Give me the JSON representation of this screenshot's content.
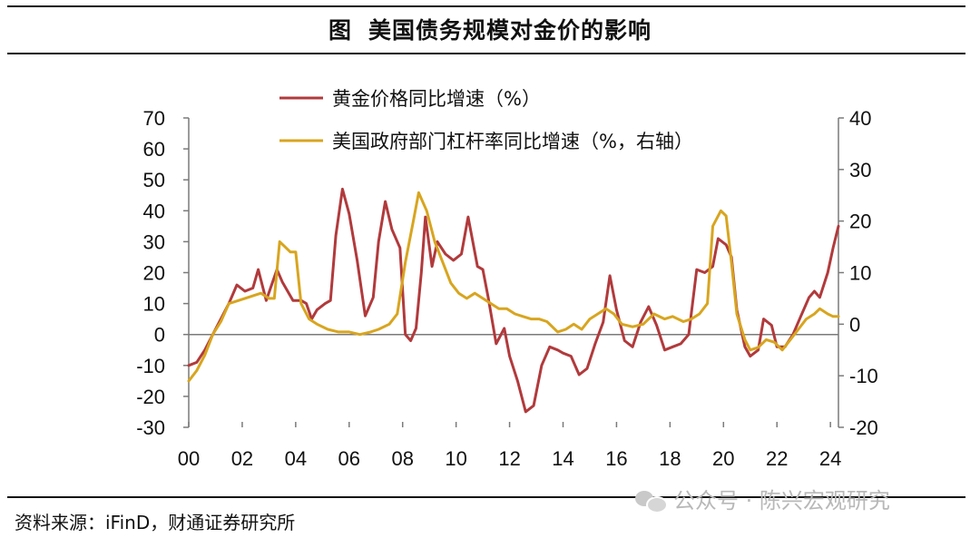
{
  "header": {
    "fig_mark": "图",
    "title": "美国债务规模对金价的影响"
  },
  "source": "资料来源：iFinD，财通证券研究所",
  "watermark": "公众号 · 陈兴宏观研究",
  "chart_data": {
    "type": "line",
    "x_tick_labels": [
      "00",
      "02",
      "04",
      "06",
      "08",
      "10",
      "12",
      "14",
      "16",
      "18",
      "20",
      "22",
      "24"
    ],
    "xlim": [
      2000.0,
      2024.3
    ],
    "y_left": {
      "ticks": [
        "70",
        "60",
        "50",
        "40",
        "30",
        "20",
        "10",
        "0",
        "-10",
        "-20",
        "-30"
      ],
      "lim": [
        -30,
        70
      ]
    },
    "y_right": {
      "ticks": [
        "40",
        "30",
        "20",
        "10",
        "0",
        "-10",
        "-20"
      ],
      "lim": [
        -20,
        40
      ]
    },
    "legend_position": "top-center",
    "series": [
      {
        "name": "黄金价格同比增速（%）",
        "axis": "left",
        "color": "#b13a3c",
        "points": [
          [
            2000.0,
            -10
          ],
          [
            2000.3,
            -9
          ],
          [
            2000.6,
            -5
          ],
          [
            2000.9,
            0
          ],
          [
            2001.2,
            5
          ],
          [
            2001.5,
            10
          ],
          [
            2001.8,
            16
          ],
          [
            2002.1,
            14
          ],
          [
            2002.4,
            15
          ],
          [
            2002.6,
            21
          ],
          [
            2002.9,
            11
          ],
          [
            2003.1,
            16
          ],
          [
            2003.3,
            21
          ],
          [
            2003.5,
            17
          ],
          [
            2003.7,
            14
          ],
          [
            2003.9,
            11
          ],
          [
            2004.2,
            11
          ],
          [
            2004.4,
            10
          ],
          [
            2004.6,
            5
          ],
          [
            2004.8,
            8
          ],
          [
            2005.1,
            10
          ],
          [
            2005.3,
            11
          ],
          [
            2005.5,
            32
          ],
          [
            2005.75,
            47
          ],
          [
            2006.0,
            39
          ],
          [
            2006.3,
            24
          ],
          [
            2006.6,
            6
          ],
          [
            2006.9,
            12
          ],
          [
            2007.1,
            30
          ],
          [
            2007.35,
            43
          ],
          [
            2007.6,
            34
          ],
          [
            2007.9,
            28
          ],
          [
            2008.1,
            0
          ],
          [
            2008.3,
            -2
          ],
          [
            2008.5,
            2
          ],
          [
            2008.7,
            20
          ],
          [
            2008.85,
            38
          ],
          [
            2009.1,
            22
          ],
          [
            2009.3,
            30
          ],
          [
            2009.6,
            26
          ],
          [
            2009.9,
            24
          ],
          [
            2010.2,
            26
          ],
          [
            2010.45,
            38
          ],
          [
            2010.8,
            22
          ],
          [
            2011.0,
            21
          ],
          [
            2011.2,
            12
          ],
          [
            2011.5,
            -3
          ],
          [
            2011.8,
            2
          ],
          [
            2012.0,
            -7
          ],
          [
            2012.3,
            -15
          ],
          [
            2012.6,
            -25
          ],
          [
            2012.9,
            -23
          ],
          [
            2013.2,
            -10
          ],
          [
            2013.5,
            -4
          ],
          [
            2013.8,
            -5
          ],
          [
            2014.0,
            -6
          ],
          [
            2014.3,
            -7
          ],
          [
            2014.6,
            -13
          ],
          [
            2014.9,
            -11
          ],
          [
            2015.2,
            -3
          ],
          [
            2015.5,
            4
          ],
          [
            2015.75,
            19
          ],
          [
            2016.0,
            8
          ],
          [
            2016.3,
            -2
          ],
          [
            2016.6,
            -4
          ],
          [
            2016.9,
            4
          ],
          [
            2017.2,
            9
          ],
          [
            2017.5,
            3
          ],
          [
            2017.8,
            -5
          ],
          [
            2018.1,
            -4
          ],
          [
            2018.4,
            -3
          ],
          [
            2018.7,
            0
          ],
          [
            2019.0,
            21
          ],
          [
            2019.3,
            20
          ],
          [
            2019.6,
            22
          ],
          [
            2019.8,
            31
          ],
          [
            2020.1,
            29
          ],
          [
            2020.3,
            25
          ],
          [
            2020.5,
            8
          ],
          [
            2020.8,
            -4
          ],
          [
            2021.0,
            -7
          ],
          [
            2021.3,
            -5
          ],
          [
            2021.5,
            5
          ],
          [
            2021.8,
            3
          ],
          [
            2022.0,
            -4
          ],
          [
            2022.3,
            -4
          ],
          [
            2022.6,
            0
          ],
          [
            2022.9,
            6
          ],
          [
            2023.2,
            12
          ],
          [
            2023.4,
            14
          ],
          [
            2023.6,
            12
          ],
          [
            2023.9,
            20
          ],
          [
            2024.1,
            28
          ],
          [
            2024.3,
            35
          ]
        ]
      },
      {
        "name": "美国政府部门杠杆率同比增速（%，右轴）",
        "axis": "right",
        "color": "#d8a51f",
        "points": [
          [
            2000.0,
            -11
          ],
          [
            2000.3,
            -9
          ],
          [
            2000.6,
            -6
          ],
          [
            2000.9,
            -2
          ],
          [
            2001.2,
            0.5
          ],
          [
            2001.5,
            4
          ],
          [
            2001.8,
            4.5
          ],
          [
            2002.1,
            5
          ],
          [
            2002.4,
            5.5
          ],
          [
            2002.7,
            6
          ],
          [
            2003.0,
            5
          ],
          [
            2003.2,
            5
          ],
          [
            2003.4,
            16
          ],
          [
            2003.6,
            15
          ],
          [
            2003.8,
            14
          ],
          [
            2004.0,
            14
          ],
          [
            2004.2,
            4
          ],
          [
            2004.5,
            1
          ],
          [
            2004.8,
            0
          ],
          [
            2005.2,
            -1
          ],
          [
            2005.6,
            -1.5
          ],
          [
            2006.0,
            -1.5
          ],
          [
            2006.4,
            -2
          ],
          [
            2006.8,
            -1.5
          ],
          [
            2007.1,
            -1
          ],
          [
            2007.5,
            0
          ],
          [
            2007.8,
            2
          ],
          [
            2008.1,
            12
          ],
          [
            2008.4,
            20
          ],
          [
            2008.6,
            25.5
          ],
          [
            2008.9,
            22
          ],
          [
            2009.2,
            16
          ],
          [
            2009.5,
            12
          ],
          [
            2009.8,
            8
          ],
          [
            2010.1,
            6
          ],
          [
            2010.4,
            5
          ],
          [
            2010.7,
            6
          ],
          [
            2011.0,
            5
          ],
          [
            2011.3,
            4
          ],
          [
            2011.6,
            3
          ],
          [
            2011.9,
            3
          ],
          [
            2012.2,
            2
          ],
          [
            2012.5,
            1.5
          ],
          [
            2012.8,
            1
          ],
          [
            2013.1,
            1
          ],
          [
            2013.4,
            0.5
          ],
          [
            2013.8,
            -1.5
          ],
          [
            2014.1,
            -1
          ],
          [
            2014.4,
            0
          ],
          [
            2014.7,
            -1
          ],
          [
            2015.0,
            1
          ],
          [
            2015.3,
            2
          ],
          [
            2015.6,
            3
          ],
          [
            2015.9,
            2
          ],
          [
            2016.2,
            0
          ],
          [
            2016.6,
            -0.5
          ],
          [
            2017.0,
            0
          ],
          [
            2017.4,
            2
          ],
          [
            2017.8,
            1
          ],
          [
            2018.1,
            1.5
          ],
          [
            2018.5,
            0.5
          ],
          [
            2018.8,
            1
          ],
          [
            2019.1,
            2
          ],
          [
            2019.4,
            4
          ],
          [
            2019.6,
            19
          ],
          [
            2019.9,
            22
          ],
          [
            2020.1,
            21
          ],
          [
            2020.3,
            12
          ],
          [
            2020.5,
            2
          ],
          [
            2020.8,
            -3
          ],
          [
            2021.0,
            -5
          ],
          [
            2021.3,
            -4.5
          ],
          [
            2021.6,
            -3
          ],
          [
            2021.9,
            -3.5
          ],
          [
            2022.2,
            -5
          ],
          [
            2022.5,
            -3
          ],
          [
            2022.8,
            -1
          ],
          [
            2023.1,
            1
          ],
          [
            2023.4,
            2
          ],
          [
            2023.6,
            3
          ],
          [
            2023.9,
            2
          ],
          [
            2024.1,
            1.5
          ],
          [
            2024.3,
            1.5
          ]
        ]
      }
    ]
  }
}
